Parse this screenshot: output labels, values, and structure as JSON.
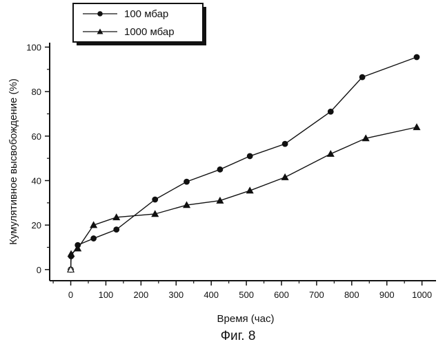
{
  "chart_data": {
    "type": "line",
    "title": "",
    "caption": "Фиг. 8",
    "xlabel": "Время (час)",
    "ylabel": "Кумулятивное высвобождение (%)",
    "xlim": [
      -60,
      1040
    ],
    "ylim": [
      -5,
      102
    ],
    "xticks": [
      0,
      100,
      200,
      300,
      400,
      500,
      600,
      700,
      800,
      900,
      1000
    ],
    "yticks": [
      0,
      20,
      40,
      60,
      80,
      100
    ],
    "grid": false,
    "legend_position": "top-left",
    "series": [
      {
        "name": "100 мбар",
        "marker": "circle",
        "x": [
          0,
          1,
          20,
          65,
          130,
          240,
          330,
          425,
          510,
          610,
          740,
          830,
          985
        ],
        "y": [
          0,
          6,
          11,
          14,
          18,
          31.5,
          39.5,
          45,
          51,
          56.5,
          71,
          86.5,
          95.5
        ]
      },
      {
        "name": "1000 мбар",
        "marker": "triangle",
        "x": [
          0,
          1,
          20,
          65,
          130,
          240,
          330,
          425,
          510,
          610,
          740,
          840,
          985
        ],
        "y": [
          0,
          7,
          9.5,
          20,
          23.5,
          25,
          29,
          31,
          35.5,
          41.5,
          52,
          59,
          64
        ]
      }
    ]
  }
}
